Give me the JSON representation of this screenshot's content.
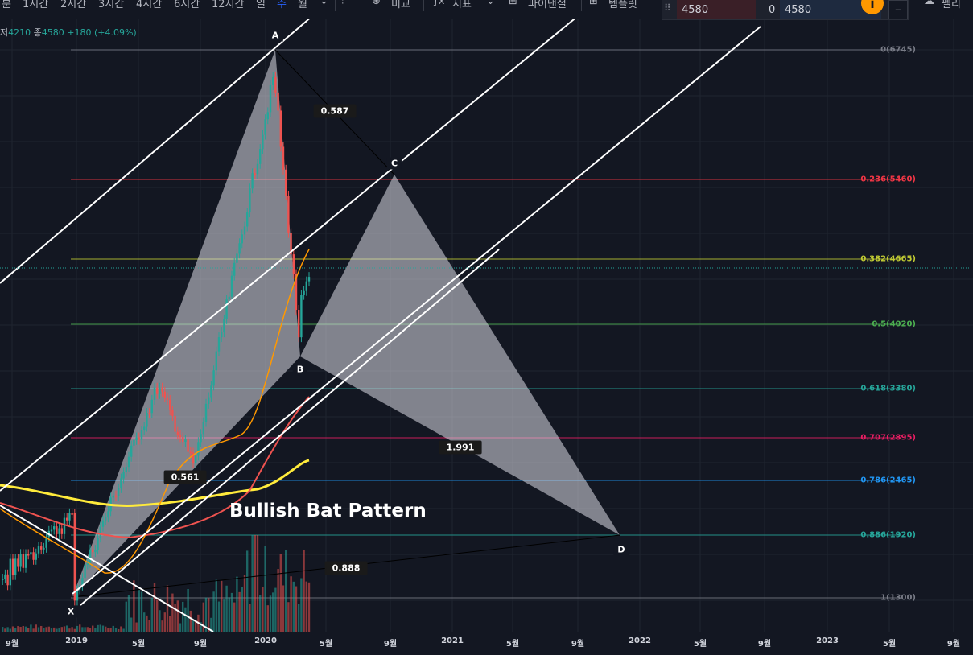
{
  "toolbar": {
    "timeframes": [
      "분",
      "1시간",
      "2시간",
      "3시간",
      "4시간",
      "6시간",
      "12시간",
      "일",
      "주",
      "월"
    ],
    "active": "주",
    "compare_label": "비교",
    "indicators_label": "지표",
    "template_label": "파이낸셜",
    "template2_label": "템플릿",
    "more_label": "펠리"
  },
  "trade": {
    "sell_price": "4580",
    "spread": "0",
    "buy_price": "4580"
  },
  "legend": {
    "low_label": "저",
    "low": "4210",
    "close_label": "종",
    "close": "4580",
    "change": "+180 (+4.09%)"
  },
  "x_labels": [
    "9월",
    "2019",
    "5월",
    "9월",
    "2020",
    "5월",
    "9월",
    "2021",
    "5월",
    "9월",
    "2022",
    "5월",
    "9월",
    "2023",
    "5월",
    "9월"
  ],
  "fib_levels": [
    {
      "label": "0(6745)",
      "color": "#787b86"
    },
    {
      "label": "0.236(5460)",
      "color": "#f23645"
    },
    {
      "label": "0.382(4665)",
      "color": "#c0ca33"
    },
    {
      "label": "0.5(4020)",
      "color": "#4caf50"
    },
    {
      "label": "0.618(3380)",
      "color": "#26a69a"
    },
    {
      "label": "0.707(2895)",
      "color": "#e91e63"
    },
    {
      "label": "0.786(2465)",
      "color": "#2196f3"
    },
    {
      "label": "0.886(1920)",
      "color": "#26a69a"
    },
    {
      "label": "1(1300)",
      "color": "#787b86"
    }
  ],
  "points": {
    "X": "X",
    "A": "A",
    "B": "B",
    "C": "C",
    "D": "D"
  },
  "ratios": {
    "xab": "0.561",
    "abc": "0.587",
    "bcd": "1.991",
    "xad": "0.888"
  },
  "pattern_title": "Bullish Bat Pattern"
}
